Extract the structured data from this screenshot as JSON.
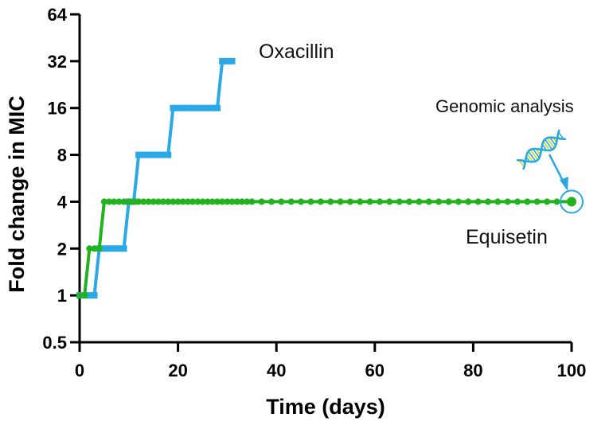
{
  "chart_data": {
    "type": "line",
    "xlabel": "Time (days)",
    "ylabel": "Fold change in MIC",
    "xlim": [
      0,
      100
    ],
    "ylim": [
      0.5,
      64
    ],
    "y_scale": "log2",
    "x_ticks": [
      0,
      20,
      40,
      60,
      80,
      100
    ],
    "y_ticks": [
      0.5,
      1,
      2,
      4,
      8,
      16,
      32,
      64
    ],
    "y_tick_labels": [
      "0.5",
      "1",
      "2",
      "4",
      "8",
      "16",
      "32",
      "64"
    ],
    "grid": false,
    "series": [
      {
        "name": "Oxacillin",
        "color": "#29a9e8",
        "marker": "square",
        "x": [
          0,
          1,
          2,
          3,
          4,
          5,
          6,
          7,
          8,
          9,
          10,
          11,
          12,
          13,
          14,
          15,
          16,
          17,
          18,
          19,
          20,
          21,
          22,
          23,
          24,
          25,
          26,
          27,
          28,
          29,
          30,
          31
        ],
        "y": [
          1,
          1,
          1,
          1,
          2,
          2,
          2,
          2,
          2,
          2,
          4,
          4,
          8,
          8,
          8,
          8,
          8,
          8,
          8,
          16,
          16,
          16,
          16,
          16,
          16,
          16,
          16,
          16,
          16,
          32,
          32,
          32
        ]
      },
      {
        "name": "Equisetin",
        "color": "#22b21e",
        "marker": "circle",
        "x": [
          0,
          1,
          2,
          3,
          4,
          5,
          6,
          7,
          8,
          9,
          10,
          11,
          12,
          13,
          14,
          15,
          16,
          17,
          18,
          19,
          20,
          21,
          22,
          23,
          24,
          25,
          26,
          27,
          28,
          29,
          30,
          31,
          32,
          33,
          34,
          35,
          37,
          39,
          41,
          43,
          45,
          47,
          49,
          51,
          53,
          55,
          57,
          59,
          61,
          63,
          65,
          67,
          69,
          71,
          73,
          75,
          77,
          79,
          81,
          83,
          85,
          87,
          89,
          91,
          93,
          95,
          97,
          100
        ],
        "y": [
          1,
          1,
          2,
          2,
          2,
          4,
          4,
          4,
          4,
          4,
          4,
          4,
          4,
          4,
          4,
          4,
          4,
          4,
          4,
          4,
          4,
          4,
          4,
          4,
          4,
          4,
          4,
          4,
          4,
          4,
          4,
          4,
          4,
          4,
          4,
          4,
          4,
          4,
          4,
          4,
          4,
          4,
          4,
          4,
          4,
          4,
          4,
          4,
          4,
          4,
          4,
          4,
          4,
          4,
          4,
          4,
          4,
          4,
          4,
          4,
          4,
          4,
          4,
          4,
          4,
          4,
          4,
          4
        ]
      }
    ],
    "annotations": [
      {
        "text": "Genomic analysis",
        "x": 100,
        "y": 4,
        "icon": "dna-helix-icon",
        "highlight": "circle"
      }
    ],
    "colors": {
      "axis": "#000000",
      "annotation": "#2aa8e0",
      "dna_accent": "#c8e000"
    }
  }
}
